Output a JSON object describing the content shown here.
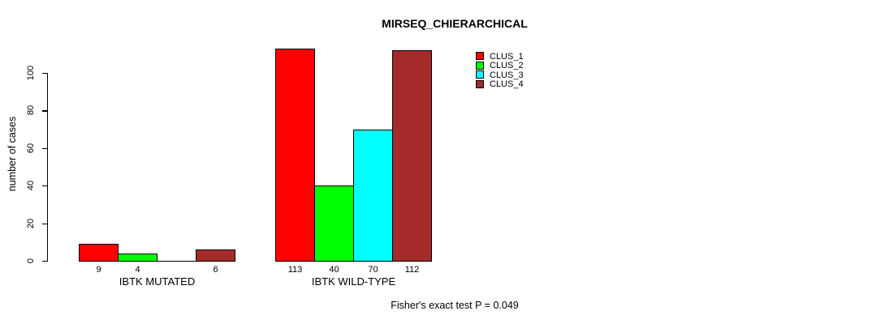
{
  "chart_data": {
    "type": "bar",
    "title": "MIRSEQ_CHIERARCHICAL",
    "ylabel": "number of cases",
    "xlabel": "",
    "ylim": [
      0,
      115
    ],
    "yticks": [
      0,
      20,
      40,
      60,
      80,
      100
    ],
    "grid": false,
    "legend_position": "top-right-inside",
    "categories": [
      "IBTK MUTATED",
      "IBTK WILD-TYPE"
    ],
    "series": [
      {
        "name": "CLUS_1",
        "color": "#ff0000",
        "values": [
          9,
          113
        ]
      },
      {
        "name": "CLUS_2",
        "color": "#00ff00",
        "values": [
          4,
          40
        ]
      },
      {
        "name": "CLUS_3",
        "color": "#00ffff",
        "values": [
          0,
          70
        ]
      },
      {
        "name": "CLUS_4",
        "color": "#a52a2a",
        "values": [
          6,
          112
        ]
      }
    ],
    "bar_value_labels": [
      [
        "9",
        "4",
        "",
        "6"
      ],
      [
        "113",
        "40",
        "70",
        "112"
      ]
    ],
    "annotation": "Fisher's exact test P = 0.049"
  },
  "colors": {
    "background": "#ffffff",
    "axis": "#000000",
    "text": "#000000"
  }
}
